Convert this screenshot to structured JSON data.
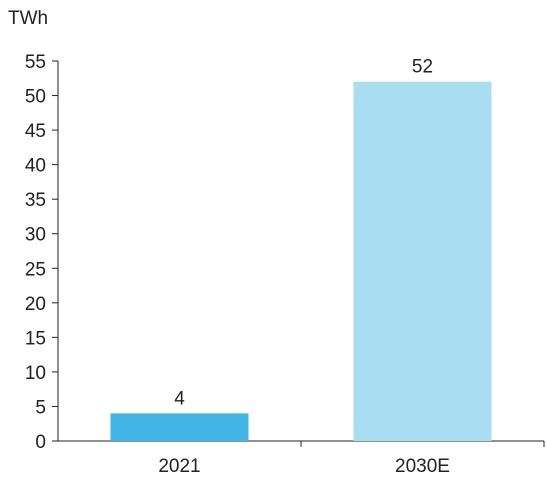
{
  "chart_data": {
    "type": "bar",
    "unit_label": "TWh",
    "categories": [
      "2021",
      "2030E"
    ],
    "values": [
      4,
      52
    ],
    "data_labels": [
      "4",
      "52"
    ],
    "bar_colors": [
      "#41b6e6",
      "#a9def2"
    ],
    "ylim": [
      0,
      55
    ],
    "yticks": [
      0,
      5,
      10,
      15,
      20,
      25,
      30,
      35,
      40,
      45,
      50,
      55
    ],
    "ytick_labels": [
      "0",
      "5",
      "10",
      "15",
      "20",
      "25",
      "30",
      "35",
      "40",
      "45",
      "50",
      "55"
    ],
    "grid": false,
    "legend": "none",
    "title": "",
    "xlabel": "",
    "ylabel": ""
  },
  "colors": {
    "axis": "#222222",
    "text": "#222222"
  }
}
